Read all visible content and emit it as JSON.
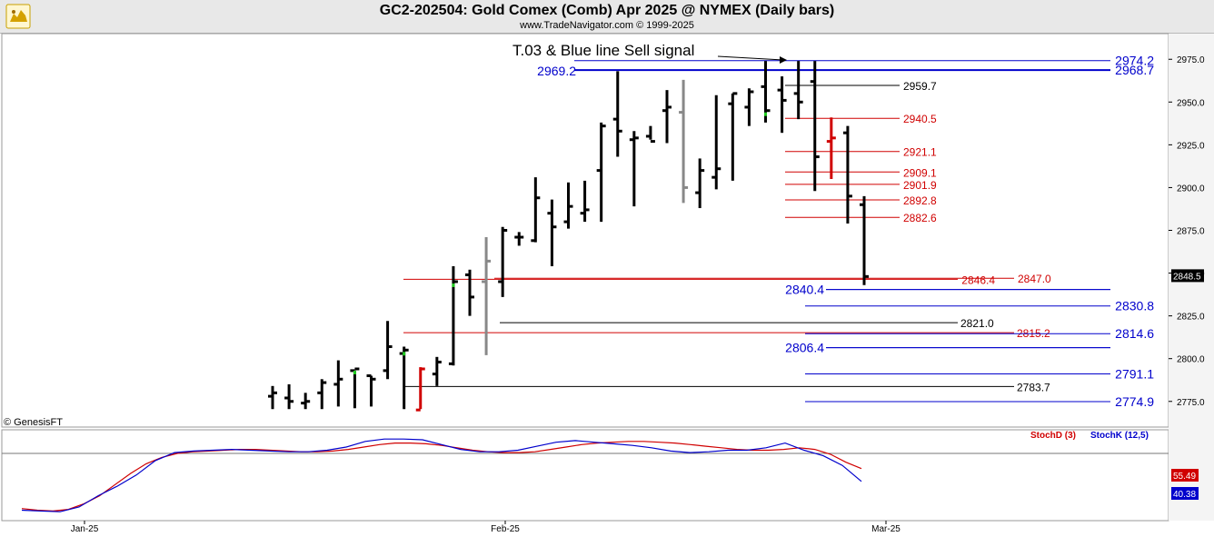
{
  "header": {
    "title": "GC2-202504:  Gold Comex (Comb) Apr 2025 @ NYMEX  (Daily bars)",
    "subtitle": "www.TradeNavigator.com © 1999-2025",
    "logo_icon": "bull-logo-icon"
  },
  "watermark": "© GenesisFT",
  "annotation": "T.03 & Blue line Sell signal",
  "current_price": "2848.5",
  "chart_data": [
    {
      "type": "ohlc",
      "ylim": [
        2760,
        2990
      ],
      "yticks": [
        2775.0,
        2800.0,
        2825.0,
        2850.0,
        2875.0,
        2900.0,
        2925.0,
        2950.0,
        2975.0
      ],
      "xticks": [
        "Jan-25",
        "Feb-25",
        "Mar-25"
      ],
      "colors": {
        "bar": "#000000",
        "down_bar": "#d00000",
        "gray_bar": "#888888",
        "blue_level": "#0000cc",
        "red_level": "#d00000",
        "black_level": "#000000"
      },
      "bars": [
        {
          "h": 2784,
          "l": 2770,
          "o": 2778,
          "c": 2780,
          "col": "k"
        },
        {
          "h": 2785,
          "l": 2770,
          "o": 2777,
          "c": 2775,
          "col": "k"
        },
        {
          "h": 2780,
          "l": 2770,
          "o": 2774,
          "c": 2775,
          "col": "k"
        },
        {
          "h": 2788,
          "l": 2770,
          "o": 2780,
          "c": 2786,
          "col": "k"
        },
        {
          "h": 2799,
          "l": 2772,
          "o": 2785,
          "c": 2788,
          "col": "k"
        },
        {
          "h": 2793,
          "l": 2771,
          "o": 2793,
          "c": 2794,
          "col": "k",
          "g": 1
        },
        {
          "h": 2790,
          "l": 2772,
          "o": 2790,
          "c": 2788,
          "col": "k"
        },
        {
          "h": 2822,
          "l": 2788,
          "o": 2793,
          "c": 2807,
          "col": "k"
        },
        {
          "h": 2807,
          "l": 2770,
          "o": 2803,
          "c": 2805,
          "col": "k",
          "g": 1
        },
        {
          "h": 2795,
          "l": 2770,
          "o": 2770,
          "c": 2794,
          "col": "r"
        },
        {
          "h": 2801,
          "l": 2784,
          "o": 2791,
          "c": 2798,
          "col": "k"
        },
        {
          "h": 2854,
          "l": 2796,
          "o": 2797,
          "c": 2845,
          "col": "k",
          "g": 1
        },
        {
          "h": 2852,
          "l": 2825,
          "o": 2849,
          "c": 2836,
          "col": "k"
        },
        {
          "h": 2871,
          "l": 2802,
          "o": 2845,
          "c": 2857,
          "col": "gy"
        },
        {
          "h": 2877,
          "l": 2836,
          "o": 2845,
          "c": 2875,
          "col": "k"
        },
        {
          "h": 2874,
          "l": 2866,
          "o": 2871,
          "c": 2871,
          "col": "k"
        },
        {
          "h": 2906,
          "l": 2868,
          "o": 2869,
          "c": 2894,
          "col": "k"
        },
        {
          "h": 2893,
          "l": 2854,
          "o": 2885,
          "c": 2877,
          "col": "k"
        },
        {
          "h": 2903,
          "l": 2876,
          "o": 2880,
          "c": 2889,
          "col": "k"
        },
        {
          "h": 2904,
          "l": 2880,
          "o": 2885,
          "c": 2887,
          "col": "k"
        },
        {
          "h": 2938,
          "l": 2880,
          "o": 2910,
          "c": 2936,
          "col": "k"
        },
        {
          "h": 2968,
          "l": 2918,
          "o": 2940,
          "c": 2933,
          "col": "k"
        },
        {
          "h": 2933,
          "l": 2889,
          "o": 2928,
          "c": 2929,
          "col": "k"
        },
        {
          "h": 2936,
          "l": 2928,
          "o": 2930,
          "c": 2927,
          "col": "k"
        },
        {
          "h": 2957,
          "l": 2926,
          "o": 2945,
          "c": 2947,
          "col": "k"
        },
        {
          "h": 2963,
          "l": 2891,
          "o": 2944,
          "c": 2900,
          "col": "gy"
        },
        {
          "h": 2917,
          "l": 2888,
          "o": 2897,
          "c": 2910,
          "col": "k"
        },
        {
          "h": 2954,
          "l": 2899,
          "o": 2906,
          "c": 2911,
          "col": "k"
        },
        {
          "h": 2955,
          "l": 2904,
          "o": 2949,
          "c": 2955,
          "col": "k"
        },
        {
          "h": 2958,
          "l": 2936,
          "o": 2947,
          "c": 2956,
          "col": "k"
        },
        {
          "h": 2974,
          "l": 2938,
          "o": 2959,
          "c": 2945,
          "col": "k",
          "g": 1
        },
        {
          "h": 2965,
          "l": 2932,
          "o": 2957,
          "c": 2951,
          "col": "k"
        },
        {
          "h": 2974,
          "l": 2940,
          "o": 2955,
          "c": 2950,
          "col": "k"
        },
        {
          "h": 2974,
          "l": 2898,
          "o": 2962,
          "c": 2918,
          "col": "k"
        },
        {
          "h": 2941,
          "l": 2905,
          "o": 2927,
          "c": 2929,
          "col": "r"
        },
        {
          "h": 2936,
          "l": 2879,
          "o": 2932,
          "c": 2895,
          "col": "k"
        },
        {
          "h": 2895,
          "l": 2843,
          "o": 2890,
          "c": 2848,
          "col": "k"
        }
      ],
      "levels": [
        {
          "label": "2974.2",
          "value": 2974.2,
          "color": "blue",
          "side": "right"
        },
        {
          "label": "2968.7",
          "value": 2968.7,
          "color": "blue",
          "side": "right",
          "also_left": "2969.2"
        },
        {
          "label": "2959.7",
          "value": 2959.7,
          "color": "black",
          "side": "short"
        },
        {
          "label": "2940.5",
          "value": 2940.5,
          "color": "red",
          "side": "short"
        },
        {
          "label": "2921.1",
          "value": 2921.1,
          "color": "red",
          "side": "short"
        },
        {
          "label": "2909.1",
          "value": 2909.1,
          "color": "red",
          "side": "short"
        },
        {
          "label": "2901.9",
          "value": 2901.9,
          "color": "red",
          "side": "short"
        },
        {
          "label": "2892.8",
          "value": 2892.8,
          "color": "red",
          "side": "short"
        },
        {
          "label": "2882.6",
          "value": 2882.6,
          "color": "red",
          "side": "short"
        },
        {
          "label": "2847.0",
          "value": 2847.0,
          "color": "red",
          "side": "long"
        },
        {
          "label": "2846.4",
          "value": 2846.4,
          "color": "red",
          "side": "long"
        },
        {
          "label": "2840.4",
          "value": 2840.4,
          "color": "blue",
          "side": "left"
        },
        {
          "label": "2830.8",
          "value": 2830.8,
          "color": "blue",
          "side": "right"
        },
        {
          "label": "2821.0",
          "value": 2821.0,
          "color": "black",
          "side": "long"
        },
        {
          "label": "2815.2",
          "value": 2815.2,
          "color": "red",
          "side": "long"
        },
        {
          "label": "2814.6",
          "value": 2814.6,
          "color": "blue",
          "side": "right"
        },
        {
          "label": "2806.4",
          "value": 2806.4,
          "color": "blue",
          "side": "left"
        },
        {
          "label": "2791.1",
          "value": 2791.1,
          "color": "blue",
          "side": "right"
        },
        {
          "label": "2783.7",
          "value": 2783.7,
          "color": "black",
          "side": "long"
        },
        {
          "label": "2774.9",
          "value": 2774.9,
          "color": "blue",
          "side": "right"
        }
      ]
    },
    {
      "type": "line",
      "legend": [
        "StochD (3)",
        "StochK (12,5)"
      ],
      "legend_placement": "top-right",
      "series": [
        {
          "name": "StochD (3)",
          "color": "#d00000",
          "last": "55.49",
          "values": [
            6,
            4,
            3,
            5,
            12,
            22,
            36,
            50,
            62,
            70,
            75,
            77,
            78,
            79,
            80,
            80,
            79,
            78,
            77,
            77,
            78,
            80,
            83,
            86,
            88,
            88,
            87,
            85,
            82,
            79,
            77,
            76,
            76,
            77,
            80,
            83,
            86,
            88,
            89,
            90,
            90,
            89,
            88,
            86,
            84,
            82,
            80,
            79,
            79,
            80,
            82,
            80,
            74,
            64,
            56
          ]
        },
        {
          "name": "StochK (12,5)",
          "color": "#0000cc",
          "last": "40.38",
          "values": [
            4,
            3,
            2,
            8,
            22,
            34,
            48,
            66,
            76,
            78,
            79,
            80,
            79,
            78,
            77,
            77,
            79,
            83,
            90,
            93,
            93,
            92,
            86,
            80,
            77,
            77,
            79,
            84,
            89,
            91,
            89,
            87,
            85,
            82,
            78,
            76,
            77,
            79,
            79,
            82,
            88,
            79,
            72,
            60,
            40
          ]
        }
      ]
    }
  ]
}
